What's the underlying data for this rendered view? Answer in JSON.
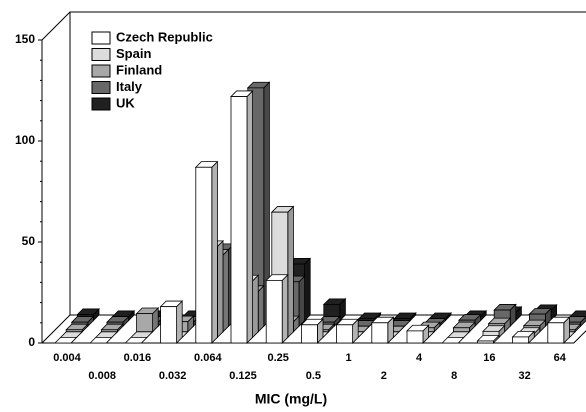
{
  "chart_data": {
    "type": "bar3d",
    "x_label": "MIC (mg/L)",
    "categories": [
      "0.004",
      "0.008",
      "0.016",
      "0.032",
      "0.064",
      "0.125",
      "0.25",
      "0.5",
      "1",
      "2",
      "4",
      "8",
      "16",
      "32",
      "64"
    ],
    "series": [
      {
        "name": "Czech Republic",
        "color": "#ffffff",
        "values": [
          0,
          0,
          0,
          18,
          87,
          122,
          31,
          9,
          9,
          10,
          6,
          0,
          1,
          3,
          10
        ]
      },
      {
        "name": "Spain",
        "color": "#dcdcdc",
        "values": [
          0,
          0,
          0,
          0,
          45,
          28,
          62,
          0,
          0,
          0,
          0,
          0,
          3,
          2,
          0
        ]
      },
      {
        "name": "Finland",
        "color": "#a8a8a8",
        "values": [
          1,
          1,
          9,
          5,
          38,
          20,
          5,
          1,
          0,
          0,
          2,
          2,
          4,
          3,
          1
        ]
      },
      {
        "name": "Italy",
        "color": "#686868",
        "values": [
          2,
          2,
          2,
          2,
          38,
          118,
          22,
          2,
          0,
          0,
          1,
          3,
          8,
          6,
          2
        ]
      },
      {
        "name": "UK",
        "color": "#202020",
        "values": [
          3,
          2,
          2,
          2,
          35,
          5,
          28,
          8,
          1,
          1,
          1,
          2,
          4,
          5,
          2
        ]
      }
    ],
    "ylim": [
      0,
      150
    ],
    "yticks": [
      0,
      50,
      100,
      150
    ]
  }
}
